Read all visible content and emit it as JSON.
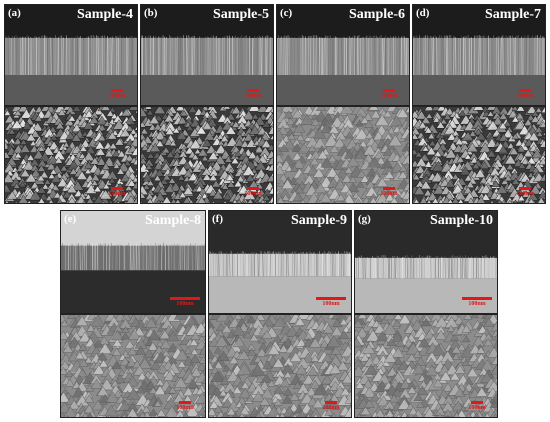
{
  "panels": [
    {
      "letter": "(a)",
      "sample": "Sample-4",
      "cross_scale": "100nm",
      "surface_scale": "100nm"
    },
    {
      "letter": "(b)",
      "sample": "Sample-5",
      "cross_scale": "100nm",
      "surface_scale": "100nm"
    },
    {
      "letter": "(c)",
      "sample": "Sample-6",
      "cross_scale": "100nm",
      "surface_scale": "100nm"
    },
    {
      "letter": "(d)",
      "sample": "Sample-7",
      "cross_scale": "100nm",
      "surface_scale": "100nm"
    },
    {
      "letter": "(e)",
      "sample": "Sample-8",
      "cross_scale": "100nm",
      "surface_scale": "100nm"
    },
    {
      "letter": "(f)",
      "sample": "Sample-9",
      "cross_scale": "100nm",
      "surface_scale": "100nm"
    },
    {
      "letter": "(g)",
      "sample": "Sample-10",
      "cross_scale": "100nm",
      "surface_scale": "100nm"
    }
  ],
  "colors": {
    "scale_bar": "#e01818",
    "label_text": "#ffffff"
  }
}
